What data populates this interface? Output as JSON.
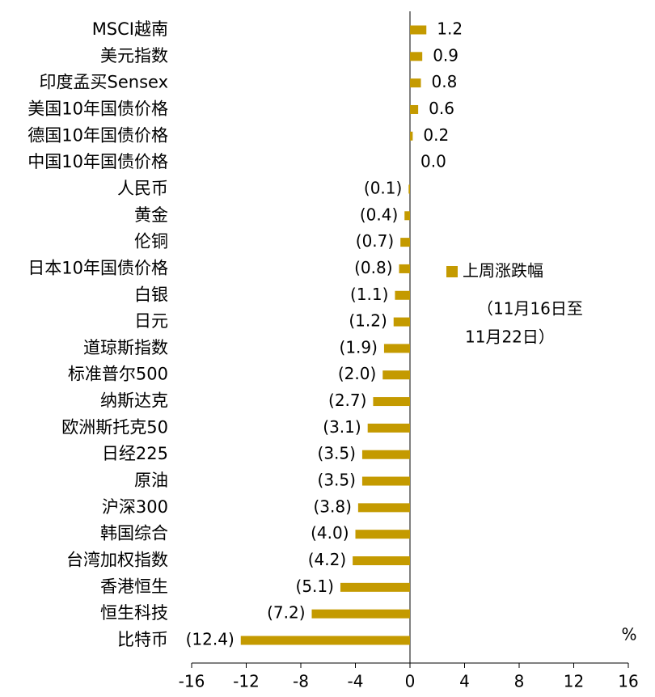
{
  "chart_data": {
    "type": "bar",
    "orientation": "horizontal",
    "categories": [
      "MSCI越南",
      "美元指数",
      "印度孟买Sensex",
      "美国10年国债价格",
      "德国10年国债价格",
      "中国10年国债价格",
      "人民币",
      "黄金",
      "伦铜",
      "日本10年国债价格",
      "白银",
      "日元",
      "道琼斯指数",
      "标准普尔500",
      "纳斯达克",
      "欧洲斯托克50",
      "日经225",
      "原油",
      "沪深300",
      "韩国综合",
      "台湾加权指数",
      "香港恒生",
      "恒生科技",
      "比特币"
    ],
    "series": [
      {
        "name": "上周涨跌幅",
        "color": "#c49a00",
        "values": [
          1.2,
          0.9,
          0.8,
          0.6,
          0.2,
          0.0,
          -0.1,
          -0.4,
          -0.7,
          -0.8,
          -1.1,
          -1.2,
          -1.9,
          -2.0,
          -2.7,
          -3.1,
          -3.5,
          -3.5,
          -3.8,
          -4.0,
          -4.2,
          -5.1,
          -7.2,
          -12.4
        ],
        "value_labels": [
          "1.2",
          "0.9",
          "0.8",
          "0.6",
          "0.2",
          "0.0",
          "(0.1)",
          "(0.4)",
          "(0.7)",
          "(0.8)",
          "(1.1)",
          "(1.2)",
          "(1.9)",
          "(2.0)",
          "(2.7)",
          "(3.1)",
          "(3.5)",
          "(3.5)",
          "(3.8)",
          "(4.0)",
          "(4.2)",
          "(5.1)",
          "(7.2)",
          "(12.4)"
        ]
      }
    ],
    "legend_period": [
      "（11月16日至",
      "11月22日）"
    ],
    "negative_label_color": "#e00000",
    "positive_label_color": "#000000",
    "xlim": [
      -16,
      16
    ],
    "xticks": [
      -16,
      -12,
      -8,
      -4,
      0,
      4,
      8,
      12,
      16
    ],
    "x_unit": "%",
    "grid": false
  }
}
